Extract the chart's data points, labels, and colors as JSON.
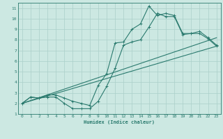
{
  "xlabel": "Humidex (Indice chaleur)",
  "xlim": [
    -0.5,
    23.5
  ],
  "ylim": [
    1,
    11.5
  ],
  "xticks": [
    0,
    1,
    2,
    3,
    4,
    5,
    6,
    7,
    8,
    9,
    10,
    11,
    12,
    13,
    14,
    15,
    16,
    17,
    18,
    19,
    20,
    21,
    22,
    23
  ],
  "yticks": [
    1,
    2,
    3,
    4,
    5,
    6,
    7,
    8,
    9,
    10,
    11
  ],
  "bg_color": "#cce8e2",
  "grid_color": "#aacfc9",
  "line_color": "#2a7a6e",
  "line1_x": [
    0,
    1,
    2,
    3,
    4,
    5,
    6,
    7,
    8,
    9,
    10,
    11,
    12,
    13,
    14,
    15,
    16,
    17,
    18,
    19,
    20,
    21,
    22,
    23
  ],
  "line1_y": [
    2.0,
    2.6,
    2.5,
    2.6,
    2.6,
    2.0,
    1.5,
    1.5,
    1.5,
    2.2,
    3.6,
    5.3,
    7.5,
    7.8,
    8.0,
    9.2,
    10.5,
    10.2,
    10.2,
    8.5,
    8.6,
    8.6,
    8.1,
    7.4
  ],
  "line2_x": [
    0,
    1,
    2,
    3,
    4,
    5,
    6,
    7,
    8,
    9,
    10,
    11,
    12,
    13,
    14,
    15,
    16,
    17,
    18,
    19,
    20,
    21,
    22,
    23
  ],
  "line2_y": [
    2.0,
    2.6,
    2.5,
    2.8,
    2.8,
    2.5,
    2.2,
    2.0,
    1.8,
    3.7,
    4.8,
    7.7,
    7.8,
    9.0,
    9.5,
    11.2,
    10.3,
    10.5,
    10.3,
    8.6,
    8.6,
    8.8,
    8.2,
    7.5
  ],
  "line3_x": [
    0,
    23
  ],
  "line3_y": [
    2.0,
    7.4
  ],
  "line4_x": [
    0,
    23
  ],
  "line4_y": [
    2.0,
    8.2
  ]
}
